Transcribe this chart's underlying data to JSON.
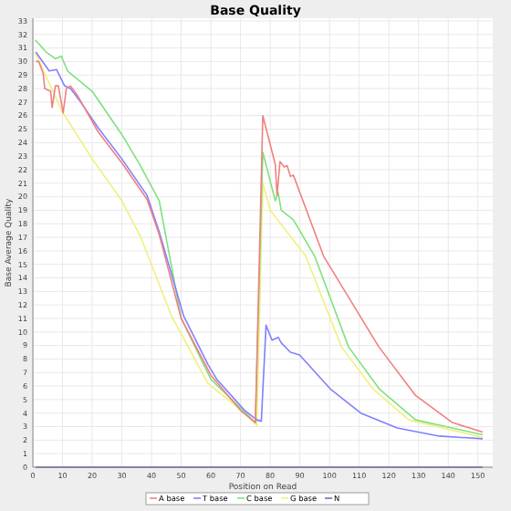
{
  "chart_data": {
    "type": "line",
    "title": "Base Quality",
    "xlabel": "Position on Read",
    "ylabel": "Base Average Quality",
    "xlim": [
      0,
      155
    ],
    "ylim": [
      0,
      33.2
    ],
    "xticks": [
      0,
      10,
      20,
      30,
      40,
      50,
      60,
      70,
      80,
      90,
      100,
      110,
      120,
      130,
      140,
      150
    ],
    "yticks": [
      0,
      1,
      2,
      3,
      4,
      5,
      6,
      7,
      8,
      9,
      10,
      11,
      12,
      13,
      14,
      15,
      16,
      17,
      18,
      19,
      20,
      21,
      22,
      23,
      24,
      25,
      26,
      27,
      28,
      29,
      30,
      31,
      32,
      33
    ],
    "grid": true,
    "legend": "bottom",
    "marker": "none",
    "line_style": "solid",
    "series": [
      {
        "name": "A base",
        "color": "#f08080",
        "x": [
          1,
          2,
          3.5,
          4,
          6,
          6.5,
          7.6,
          8.6,
          10.2,
          11.3,
          12.7,
          15,
          22,
          30,
          38.5,
          42.6,
          50,
          60,
          70,
          75,
          77.5,
          81.7,
          82.3,
          83.3,
          84.7,
          85.7,
          86.8,
          87.8,
          98,
          116.6,
          129,
          141.4,
          151.6
        ],
        "values": [
          30,
          30,
          29.1,
          28,
          27.8,
          26.6,
          28.2,
          28.2,
          26.2,
          28,
          28.2,
          27.5,
          24.8,
          22.5,
          19.8,
          17.2,
          11,
          6.8,
          4.2,
          3.3,
          26,
          22.4,
          20.1,
          22.6,
          22.2,
          22.3,
          21.5,
          21.6,
          15.6,
          8.9,
          5.3,
          3.3,
          2.6
        ]
      },
      {
        "name": "T base",
        "color": "#8080ff",
        "x": [
          1,
          5.5,
          8,
          10.7,
          12.7,
          15.8,
          22,
          30,
          38.5,
          42.6,
          50.8,
          59,
          62,
          71.4,
          75.5,
          77,
          78.6,
          80.6,
          82.7,
          83.7,
          86.8,
          89.9,
          100.2,
          110.5,
          122.8,
          137,
          151.6
        ],
        "values": [
          30.7,
          29.3,
          29.4,
          28.2,
          28,
          27.1,
          25.1,
          22.8,
          20.1,
          17.4,
          11.2,
          7.6,
          6.5,
          4.2,
          3.5,
          3.4,
          10.5,
          9.4,
          9.6,
          9.2,
          8.5,
          8.3,
          5.8,
          4,
          2.9,
          2.3,
          2.1
        ]
      },
      {
        "name": "C base",
        "color": "#80e080",
        "x": [
          0.8,
          4.5,
          7.6,
          9.6,
          11.7,
          20,
          30,
          36,
          42.6,
          50,
          60,
          75,
          77.5,
          81.7,
          82.7,
          83.7,
          87.8,
          95,
          106.4,
          116.7,
          129,
          151.6
        ],
        "values": [
          31.6,
          30.7,
          30.2,
          30.4,
          29.3,
          27.8,
          24.6,
          22.4,
          19.7,
          11,
          6.5,
          3.3,
          23.3,
          19.7,
          20.3,
          19,
          18.3,
          15.6,
          8.9,
          5.8,
          3.5,
          2.4
        ]
      },
      {
        "name": "G base",
        "color": "#f0f080",
        "x": [
          0.8,
          9.6,
          20,
          30,
          36.4,
          46.7,
          59,
          71.4,
          75.5,
          77.5,
          80,
          92,
          104,
          114.6,
          126.7,
          151.6
        ],
        "values": [
          30.7,
          26.4,
          22.8,
          19.7,
          17,
          11.2,
          6.2,
          4,
          3.1,
          21,
          19,
          15.6,
          8.9,
          5.8,
          3.5,
          2.2
        ]
      },
      {
        "name": "N",
        "color": "#7070a0",
        "x": [
          1,
          151.6
        ],
        "values": [
          0,
          0
        ]
      }
    ]
  }
}
